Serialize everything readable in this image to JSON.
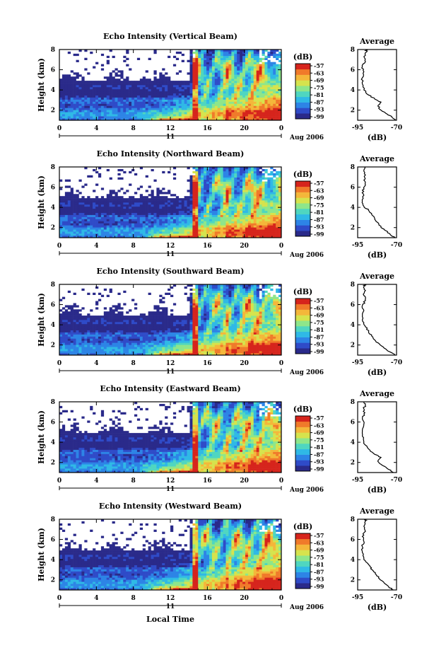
{
  "chart_data": {
    "type": "heatmap",
    "xlabel": "Local Time",
    "date_label": "11",
    "month_label": "Aug 2006",
    "x_ticks": [
      "0",
      "4",
      "8",
      "12",
      "16",
      "20",
      "0"
    ],
    "xlim": [
      0,
      24
    ],
    "ylabel": "Height (km)",
    "y_ticks": [
      "2",
      "4",
      "6",
      "8"
    ],
    "ylim": [
      1,
      8
    ],
    "colorbar": {
      "unit": "(dB)",
      "range": [
        -99,
        -57
      ],
      "ticks": [
        "-57",
        "-63",
        "-69",
        "-75",
        "-81",
        "-87",
        "-93",
        "-99"
      ],
      "colors": [
        "#2a2a8a",
        "#2f4bc8",
        "#2d84e6",
        "#2fb9e6",
        "#4fd6c0",
        "#8ee68a",
        "#d6e34d",
        "#f4b73a",
        "#f07a2a",
        "#d6241c"
      ]
    },
    "profile": {
      "title": "Average",
      "xlabel": "(dB)",
      "x_ticks": [
        "-95",
        "-70"
      ],
      "xlim": [
        -95,
        -70
      ],
      "y_ticks": [
        "2",
        "4",
        "6",
        "8"
      ],
      "ylim": [
        1,
        8
      ]
    },
    "panels": [
      {
        "title": "Echo Intensity (Vertical Beam)",
        "profile": [
          [
            1.0,
            -71
          ],
          [
            1.3,
            -73
          ],
          [
            1.6,
            -76
          ],
          [
            2.0,
            -80
          ],
          [
            2.4,
            -82
          ],
          [
            2.8,
            -80
          ],
          [
            3.1,
            -84
          ],
          [
            3.5,
            -88
          ],
          [
            4.0,
            -91
          ],
          [
            4.6,
            -92
          ],
          [
            5.2,
            -92
          ],
          [
            5.8,
            -91
          ],
          [
            6.3,
            -92
          ],
          [
            6.8,
            -90
          ],
          [
            7.3,
            -91
          ],
          [
            7.8,
            -89
          ],
          [
            8.0,
            -90
          ]
        ]
      },
      {
        "title": "Echo Intensity (Northward Beam)",
        "profile": [
          [
            1.0,
            -71
          ],
          [
            1.3,
            -74
          ],
          [
            1.7,
            -77
          ],
          [
            2.0,
            -80
          ],
          [
            2.5,
            -82
          ],
          [
            2.9,
            -84
          ],
          [
            3.3,
            -86
          ],
          [
            3.7,
            -88
          ],
          [
            4.1,
            -91
          ],
          [
            4.6,
            -92
          ],
          [
            5.2,
            -91
          ],
          [
            5.7,
            -92
          ],
          [
            6.2,
            -90
          ],
          [
            6.7,
            -91
          ],
          [
            7.2,
            -90
          ],
          [
            7.7,
            -91
          ],
          [
            8.0,
            -90
          ]
        ]
      },
      {
        "title": "Echo Intensity (Southward Beam)",
        "profile": [
          [
            1.0,
            -71
          ],
          [
            1.3,
            -74
          ],
          [
            1.7,
            -78
          ],
          [
            2.1,
            -81
          ],
          [
            2.5,
            -84
          ],
          [
            2.9,
            -86
          ],
          [
            3.3,
            -88
          ],
          [
            3.8,
            -90
          ],
          [
            4.2,
            -91
          ],
          [
            4.8,
            -92
          ],
          [
            5.4,
            -91
          ],
          [
            5.9,
            -92
          ],
          [
            6.4,
            -90
          ],
          [
            6.9,
            -91
          ],
          [
            7.4,
            -90
          ],
          [
            7.8,
            -91
          ],
          [
            8.0,
            -90
          ]
        ]
      },
      {
        "title": "Echo Intensity (Eastward Beam)",
        "profile": [
          [
            1.0,
            -72
          ],
          [
            1.3,
            -75
          ],
          [
            1.7,
            -79
          ],
          [
            2.1,
            -82
          ],
          [
            2.5,
            -80
          ],
          [
            2.8,
            -84
          ],
          [
            3.2,
            -87
          ],
          [
            3.6,
            -89
          ],
          [
            4.0,
            -91
          ],
          [
            4.6,
            -92
          ],
          [
            5.2,
            -92
          ],
          [
            5.8,
            -91
          ],
          [
            6.3,
            -92
          ],
          [
            6.8,
            -91
          ],
          [
            7.3,
            -91
          ],
          [
            7.8,
            -90
          ],
          [
            8.0,
            -91
          ]
        ]
      },
      {
        "title": "Echo Intensity (Westward Beam)",
        "profile": [
          [
            1.0,
            -72
          ],
          [
            1.3,
            -75
          ],
          [
            1.7,
            -78
          ],
          [
            2.1,
            -81
          ],
          [
            2.5,
            -83
          ],
          [
            2.9,
            -85
          ],
          [
            3.3,
            -87
          ],
          [
            3.7,
            -89
          ],
          [
            4.1,
            -91
          ],
          [
            4.7,
            -92
          ],
          [
            5.3,
            -92
          ],
          [
            5.8,
            -91
          ],
          [
            6.3,
            -92
          ],
          [
            6.8,
            -90
          ],
          [
            7.3,
            -91
          ],
          [
            7.8,
            -90
          ],
          [
            8.0,
            -90
          ]
        ]
      }
    ]
  }
}
